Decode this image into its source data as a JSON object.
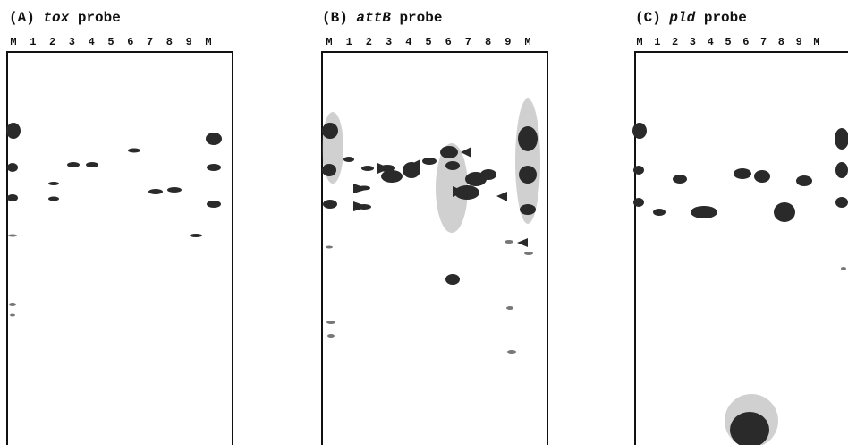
{
  "panels": [
    {
      "label": "(A)",
      "probe": "tox",
      "suffix": "probe",
      "lanes": [
        "M",
        "1",
        "2",
        "3",
        "4",
        "5",
        "6",
        "7",
        "8",
        "9",
        "M"
      ]
    },
    {
      "label": "(B)",
      "probe": "attB",
      "suffix": "probe",
      "lanes": [
        "M",
        "1",
        "2",
        "3",
        "4",
        "5",
        "6",
        "7",
        "8",
        "9",
        "M"
      ]
    },
    {
      "label": "(C)",
      "probe": "pld",
      "suffix": "probe",
      "lanes": [
        "M",
        "1",
        "2",
        "3",
        "4",
        "5",
        "6",
        "7",
        "8",
        "9",
        "M"
      ]
    }
  ]
}
